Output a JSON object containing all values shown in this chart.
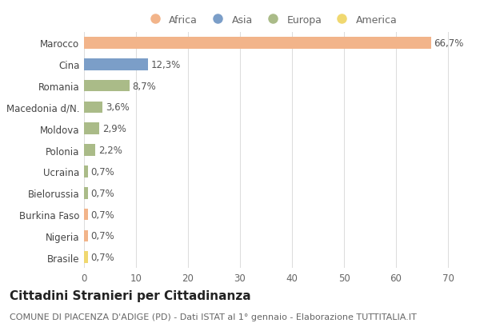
{
  "categories": [
    "Brasile",
    "Nigeria",
    "Burkina Faso",
    "Bielorussia",
    "Ucraina",
    "Polonia",
    "Moldova",
    "Macedonia d/N.",
    "Romania",
    "Cina",
    "Marocco"
  ],
  "values": [
    0.7,
    0.7,
    0.7,
    0.7,
    0.7,
    2.2,
    2.9,
    3.6,
    8.7,
    12.3,
    66.7
  ],
  "labels": [
    "0,7%",
    "0,7%",
    "0,7%",
    "0,7%",
    "0,7%",
    "2,2%",
    "2,9%",
    "3,6%",
    "8,7%",
    "12,3%",
    "66,7%"
  ],
  "continents": [
    "America",
    "Africa",
    "Africa",
    "Europa",
    "Europa",
    "Europa",
    "Europa",
    "Europa",
    "Europa",
    "Asia",
    "Africa"
  ],
  "colors": {
    "Africa": "#F2B48A",
    "Asia": "#7B9EC8",
    "Europa": "#AABB88",
    "America": "#F0D870"
  },
  "legend_order": [
    "Africa",
    "Asia",
    "Europa",
    "America"
  ],
  "xlim": [
    0,
    72
  ],
  "xticks": [
    0,
    10,
    20,
    30,
    40,
    50,
    60,
    70
  ],
  "title": "Cittadini Stranieri per Cittadinanza",
  "subtitle": "COMUNE DI PIACENZA D'ADIGE (PD) - Dati ISTAT al 1° gennaio - Elaborazione TUTTITALIA.IT",
  "background_color": "#ffffff",
  "bar_height": 0.55,
  "label_fontsize": 8.5,
  "title_fontsize": 11,
  "subtitle_fontsize": 8,
  "tick_fontsize": 8.5,
  "legend_fontsize": 9
}
